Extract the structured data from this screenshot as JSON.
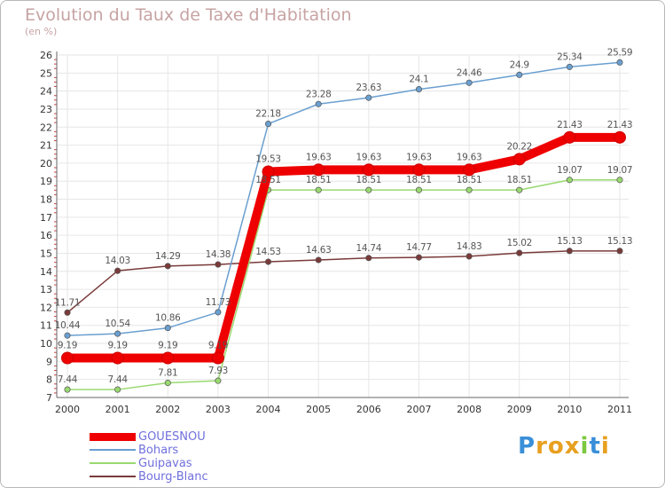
{
  "chart_data": {
    "type": "line",
    "title": "Evolution du Taux de Taxe d'Habitation",
    "subtitle": "(en %)",
    "xlabel": "",
    "ylabel": "",
    "ylim": [
      7,
      26
    ],
    "yticks": [
      "7",
      "8",
      "9",
      "10",
      "11",
      "12",
      "13",
      "14",
      "15",
      "16",
      "17",
      "18",
      "19",
      "20",
      "21",
      "22",
      "23",
      "24",
      "25",
      "26"
    ],
    "categories": [
      "2000",
      "2001",
      "2002",
      "2003",
      "2004",
      "2005",
      "2006",
      "2007",
      "2008",
      "2009",
      "2010",
      "2011"
    ],
    "series": [
      {
        "name": "GOUESNOU",
        "color": "#ee0000",
        "values": [
          9.19,
          9.19,
          9.19,
          9.19,
          19.53,
          19.63,
          19.63,
          19.63,
          19.63,
          20.22,
          21.43,
          21.43
        ],
        "labels": [
          "9.19",
          "9.19",
          "9.19",
          "9.19",
          "19.53",
          "19.63",
          "19.63",
          "19.63",
          "19.63",
          "20.22",
          "21.43",
          "21.43"
        ]
      },
      {
        "name": "Bohars",
        "color": "#6a9fd0",
        "values": [
          10.44,
          10.54,
          10.86,
          11.73,
          22.18,
          23.28,
          23.63,
          24.1,
          24.46,
          24.9,
          25.34,
          25.59
        ],
        "labels": [
          "10.44",
          "10.54",
          "10.86",
          "11.73",
          "22.18",
          "23.28",
          "23.63",
          "24.1",
          "24.46",
          "24.9",
          "25.34",
          "25.59"
        ]
      },
      {
        "name": "Guipavas",
        "color": "#99d970",
        "values": [
          7.44,
          7.44,
          7.81,
          7.93,
          18.51,
          18.51,
          18.51,
          18.51,
          18.51,
          18.51,
          19.07,
          19.07
        ],
        "labels": [
          "7.44",
          "7.44",
          "7.81",
          "7.93",
          "18.51",
          "18.51",
          "18.51",
          "18.51",
          "18.51",
          "18.51",
          "19.07",
          "19.07"
        ]
      },
      {
        "name": "Bourg-Blanc",
        "color": "#7a3a3a",
        "values": [
          11.71,
          14.03,
          14.29,
          14.38,
          14.53,
          14.63,
          14.74,
          14.77,
          14.83,
          15.02,
          15.13,
          15.13
        ],
        "labels": [
          "11.71",
          "14.03",
          "14.29",
          "14.38",
          "14.53",
          "14.63",
          "14.74",
          "14.77",
          "14.83",
          "15.02",
          "15.13",
          "15.13"
        ]
      }
    ],
    "legend_position": "bottom-left"
  },
  "logo": {
    "letters": [
      "P",
      "r",
      "o",
      "x",
      "i",
      "t",
      "i"
    ],
    "colors": [
      "#3a8fd8",
      "#e8a020",
      "#e8a020",
      "#e8a020",
      "#7cc840",
      "#3a8fd8",
      "#e8a020"
    ]
  }
}
